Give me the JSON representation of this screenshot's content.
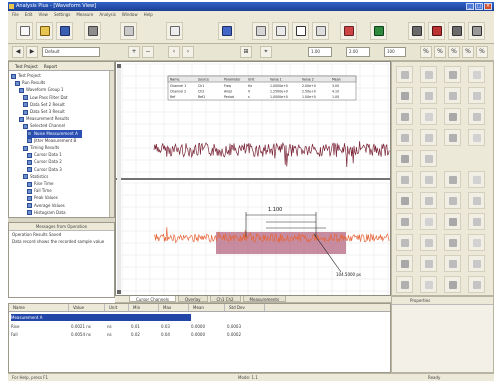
{
  "window": {
    "title": "Analysis Plus - [Waveform View]"
  },
  "menu": [
    "File",
    "Edit",
    "View",
    "Settings",
    "Measure",
    "Analysis",
    "Window",
    "Help"
  ],
  "toolbar2": {
    "field1": "Default",
    "field2": "1.00",
    "field3": "2.00",
    "field4": "100"
  },
  "left_panel": {
    "tabs": [
      "Test Project",
      "Report"
    ],
    "tree": [
      "Test Project",
      "Run Results",
      "Waveform Group 1",
      "Low Pass Filter Dat",
      "Data Set 2 Result",
      "Data Set 3 Result",
      "Measurement Results",
      "Selected Channel",
      "Noise Measurement A",
      "Jitter Measurement B",
      "Timing Results",
      "Cursor Data 1",
      "Cursor Data 2",
      "Cursor Data 3",
      "Statistics",
      "Rise Time",
      "Fall Time",
      "Peak Values",
      "Average Values",
      "Histogram Data"
    ],
    "selected_index": 8,
    "lower_header": "Messages from Operation",
    "lower_lines": [
      "Operation Results Saved",
      "Data record shows the recorded sample value"
    ]
  },
  "center": {
    "upper_table_headers": [
      "Name",
      "Source",
      "Parameter",
      "Unit",
      "Value 1",
      "Value 2",
      "Mean"
    ],
    "upper_table_rows": [
      [
        "Channel 1",
        "Ch1",
        "Freq",
        "Hz",
        "1.0000e+0",
        "2.00e+0",
        "3.00"
      ],
      [
        "Channel 2",
        "Ch2",
        "Ampl",
        "V",
        "1.2500e+0",
        "2.50e+0",
        "4.10"
      ],
      [
        "Ref",
        "Ref1",
        "Period",
        "s",
        "1.0000e+0",
        "1.00e+0",
        "1.00"
      ]
    ],
    "cursor_label": "1.100",
    "annotation": "104.5000 ps"
  },
  "tabs_strip": [
    "Cursor Channels",
    "Overlay",
    "Ch1 Ch2",
    "Measurements"
  ],
  "bottom": {
    "headers": [
      "Name",
      "Value",
      "Unit",
      "Min",
      "Max",
      "Mean",
      "Std Dev"
    ],
    "rows": [
      [
        "Measurement A",
        "",
        "",
        "",
        "",
        "",
        ""
      ],
      [
        "Rise",
        "0.0021 ns",
        "ns",
        "0.01",
        "0.03",
        "0.0000",
        "0.0003"
      ],
      [
        "Fall",
        "0.0054 ns",
        "ns",
        "0.02",
        "0.04",
        "0.0000",
        "0.0002"
      ]
    ]
  },
  "bottom_right": {
    "header": "Properties"
  },
  "status": {
    "left": "For Help, press F1",
    "mid": "Mode: 1.1",
    "right": "Ready"
  }
}
